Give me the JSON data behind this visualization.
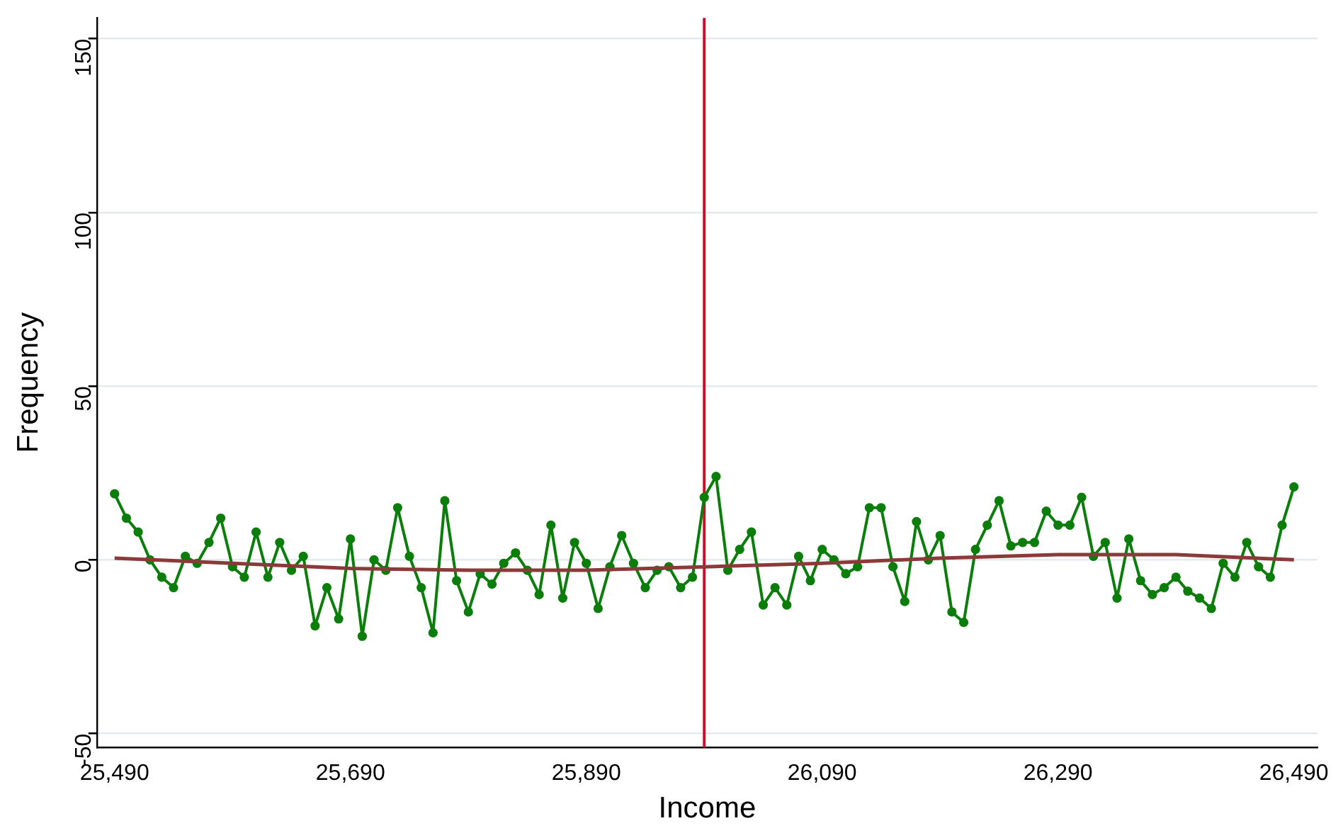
{
  "chart_data": {
    "type": "line",
    "xlabel": "Income",
    "ylabel": "Frequency",
    "xlim": [
      25475,
      26510
    ],
    "ylim": [
      -54,
      156
    ],
    "xticks": [
      {
        "value": 25490,
        "label": "25,490"
      },
      {
        "value": 25690,
        "label": "25,690"
      },
      {
        "value": 25890,
        "label": "25,890"
      },
      {
        "value": 26090,
        "label": "26,090"
      },
      {
        "value": 26290,
        "label": "26,290"
      },
      {
        "value": 26490,
        "label": "26,490"
      }
    ],
    "yticks": [
      -50,
      0,
      50,
      100,
      150
    ],
    "grid": "y",
    "legend": false,
    "series": [
      {
        "color": "#0a7d0a",
        "marker": "circle",
        "x": [
          25490,
          25500,
          25510,
          25520,
          25530,
          25540,
          25550,
          25560,
          25570,
          25580,
          25590,
          25600,
          25610,
          25620,
          25630,
          25640,
          25650,
          25660,
          25670,
          25680,
          25690,
          25700,
          25710,
          25720,
          25730,
          25740,
          25750,
          25760,
          25770,
          25780,
          25790,
          25800,
          25810,
          25820,
          25830,
          25840,
          25850,
          25860,
          25870,
          25880,
          25890,
          25900,
          25910,
          25920,
          25930,
          25940,
          25950,
          25960,
          25970,
          25980,
          25990,
          26000,
          26010,
          26020,
          26030,
          26040,
          26050,
          26060,
          26070,
          26080,
          26090,
          26100,
          26110,
          26120,
          26130,
          26140,
          26150,
          26160,
          26170,
          26180,
          26190,
          26200,
          26210,
          26220,
          26230,
          26240,
          26250,
          26260,
          26270,
          26280,
          26290,
          26300,
          26310,
          26320,
          26330,
          26340,
          26350,
          26360,
          26370,
          26380,
          26390,
          26400,
          26410,
          26420,
          26430,
          26440,
          26450,
          26460,
          26470,
          26480,
          26490
        ],
        "values": [
          19,
          12,
          8,
          0,
          -5,
          -8,
          1,
          -1,
          5,
          12,
          -2,
          -5,
          8,
          -5,
          5,
          -3,
          1,
          -19,
          -8,
          -17,
          6,
          -22,
          0,
          -3,
          15,
          1,
          -8,
          -21,
          17,
          -6,
          -15,
          -4,
          -7,
          -1,
          2,
          -3,
          -10,
          10,
          -11,
          5,
          -1,
          -14,
          -2,
          7,
          -1,
          -8,
          -3,
          -2,
          -8,
          -5,
          18,
          24,
          -3,
          3,
          8,
          -13,
          -8,
          -13,
          1,
          -6,
          3,
          0,
          -4,
          -2,
          15,
          15,
          -2,
          -12,
          11,
          0,
          7,
          -15,
          -18,
          3,
          10,
          17,
          4,
          5,
          5,
          14,
          10,
          10,
          18,
          1,
          5,
          -11,
          6,
          -6,
          -10,
          -8,
          -5,
          -9,
          -11,
          -14,
          -1,
          -5,
          5,
          -2,
          -5,
          10,
          21
        ]
      },
      {
        "color": "#8b3a3a",
        "marker": "none",
        "x": [
          25490,
          25590,
          25690,
          25790,
          25890,
          25990,
          26090,
          26190,
          26290,
          26390,
          26490
        ],
        "values": [
          0.5,
          -1,
          -2.5,
          -3,
          -3,
          -2,
          -1,
          0.5,
          1.5,
          1.5,
          0
        ]
      }
    ],
    "ref_lines": [
      {
        "axis": "x",
        "value": 25990,
        "color": "#c8102e"
      }
    ]
  }
}
